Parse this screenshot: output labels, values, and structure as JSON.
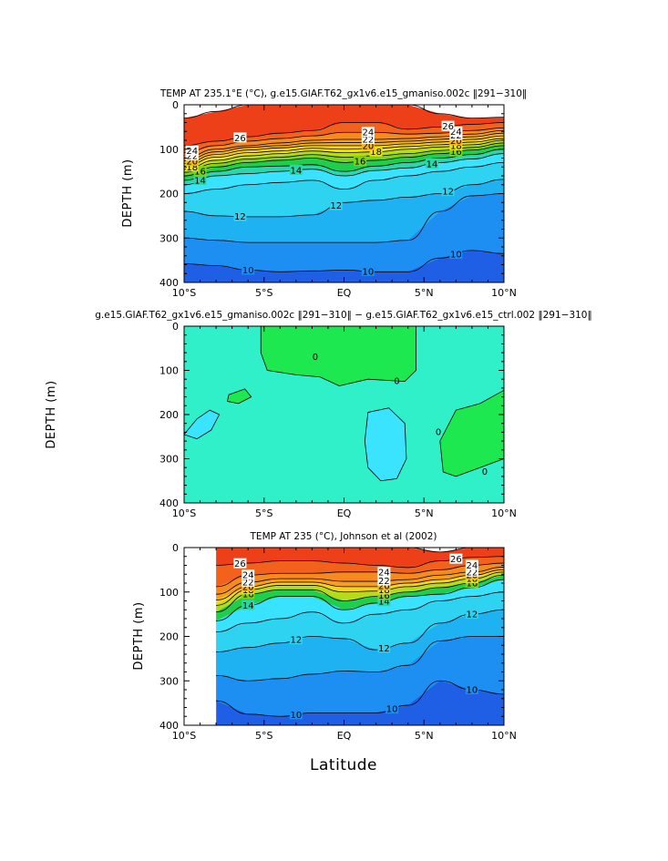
{
  "figure": {
    "xlabel": "Latitude"
  },
  "colors": {
    "t10": "#1f5fe6",
    "t11": "#1e8ff2",
    "t12": "#1fb2f3",
    "t13": "#2fd3f2",
    "t14": "#39e2ff",
    "t15": "#2cd6a8",
    "t16": "#1fcf4b",
    "t17": "#7ad41c",
    "t18": "#b6db1b",
    "t19": "#e8e01a",
    "t20": "#f6d21c",
    "t21": "#f7b51c",
    "t22": "#f79e1f",
    "t24": "#f78a1f",
    "t26": "#f2621c",
    "t28": "#ee4018",
    "diff_bg": "#2ff0c8",
    "diff_pos": "#1ee84f",
    "diff_neg": "#3ae4ff"
  },
  "chart_data": [
    {
      "type": "heatmap",
      "title": "TEMP AT 235.1°E (°C), g.e15.GIAF.T62_gx1v6.e15_gmaniso.002c ‖291−310‖",
      "ylabel": "DEPTH (m)",
      "xlabel": "",
      "xlim": [
        -10,
        10
      ],
      "ylim": [
        0,
        400
      ],
      "xticks": [
        -10,
        -5,
        0,
        5,
        10
      ],
      "xticklabels": [
        "10°S",
        "5°S",
        "EQ",
        "5°N",
        "10°N"
      ],
      "yticks": [
        0,
        100,
        200,
        300,
        400
      ],
      "yticklabels": [
        "0",
        "100",
        "200",
        "300",
        "400"
      ],
      "x": [
        -10,
        -8,
        -6,
        -4,
        -2,
        0,
        2,
        4,
        6,
        8,
        10
      ],
      "isotherm_depths": [
        {
          "level": 10,
          "depth": [
            358,
            362,
            372,
            376,
            374,
            372,
            376,
            376,
            345,
            328,
            335
          ],
          "label": "10",
          "labels_at": [
            -6,
            1.5,
            7
          ]
        },
        {
          "level": 11,
          "depth": [
            300,
            305,
            310,
            310,
            310,
            310,
            310,
            305,
            240,
            205,
            200
          ]
        },
        {
          "level": 12,
          "depth": [
            240,
            250,
            252,
            252,
            248,
            220,
            215,
            208,
            200,
            180,
            168
          ],
          "label": "12",
          "labels_at": [
            -6.5,
            -0.5,
            6.5
          ]
        },
        {
          "level": 13,
          "depth": [
            200,
            190,
            180,
            175,
            170,
            190,
            170,
            160,
            150,
            140,
            130
          ]
        },
        {
          "level": 14,
          "depth": [
            180,
            160,
            155,
            150,
            145,
            160,
            148,
            142,
            130,
            122,
            110
          ],
          "label": "14",
          "labels_at": [
            -9,
            -3,
            5.5
          ]
        },
        {
          "level": 15,
          "depth": [
            170,
            150,
            140,
            138,
            135,
            150,
            138,
            130,
            120,
            112,
            100
          ]
        },
        {
          "level": 16,
          "depth": [
            160,
            140,
            130,
            125,
            120,
            130,
            125,
            118,
            110,
            102,
            92
          ],
          "label": "16",
          "labels_at": [
            -9,
            1,
            7
          ]
        },
        {
          "level": 17,
          "depth": [
            152,
            132,
            122,
            118,
            112,
            118,
            115,
            110,
            103,
            96,
            86
          ]
        },
        {
          "level": 18,
          "depth": [
            145,
            125,
            115,
            110,
            104,
            108,
            106,
            100,
            95,
            90,
            80
          ],
          "label": "18",
          "labels_at": [
            -9.5,
            2,
            7
          ]
        },
        {
          "level": 19,
          "depth": [
            138,
            118,
            108,
            104,
            98,
            100,
            98,
            94,
            90,
            84,
            76
          ]
        },
        {
          "level": 20,
          "depth": [
            132,
            112,
            102,
            97,
            92,
            92,
            92,
            88,
            84,
            78,
            70
          ],
          "label": "20",
          "labels_at": [
            -9.5,
            1.5,
            7
          ]
        },
        {
          "level": 21,
          "depth": [
            126,
            106,
            96,
            92,
            86,
            85,
            85,
            82,
            78,
            72,
            64
          ]
        },
        {
          "level": 22,
          "depth": [
            120,
            100,
            92,
            86,
            80,
            78,
            78,
            76,
            72,
            66,
            58
          ],
          "label": "22",
          "labels_at": [
            -9.5,
            1.5,
            7
          ]
        },
        {
          "level": 24,
          "depth": [
            108,
            92,
            82,
            76,
            70,
            62,
            62,
            66,
            64,
            58,
            52
          ],
          "label": "24",
          "labels_at": [
            -9.5,
            1.5,
            7
          ]
        },
        {
          "level": 26,
          "depth": [
            92,
            82,
            72,
            64,
            58,
            40,
            40,
            55,
            50,
            44,
            40
          ],
          "label": "26",
          "labels_at": [
            -6.5,
            6.5
          ]
        },
        {
          "level": 28,
          "depth": [
            30,
            15,
            0,
            0,
            0,
            0,
            0,
            0,
            20,
            30,
            28
          ]
        }
      ]
    },
    {
      "type": "heatmap",
      "title": "g.e15.GIAF.T62_gx1v6.e15_gmaniso.002c ‖291−310‖ − g.e15.GIAF.T62_gx1v6.e15_ctrl.002 ‖291−310‖",
      "ylabel": "DEPTH (m)",
      "xlabel": "",
      "xlim": [
        -10,
        10
      ],
      "ylim": [
        0,
        400
      ],
      "xticks": [
        -10,
        -5,
        0,
        5,
        10
      ],
      "xticklabels": [
        "10°S",
        "5°S",
        "EQ",
        "5°N",
        "10°N"
      ],
      "yticks": [
        0,
        100,
        200,
        300,
        400
      ],
      "yticklabels": [
        "0",
        "100",
        "200",
        "300",
        "400"
      ],
      "contour_level": 0,
      "contour_label": "0",
      "regions": [
        {
          "sign": "positive",
          "points": [
            [
              -5.2,
              0
            ],
            [
              4.5,
              0
            ],
            [
              4.5,
              100
            ],
            [
              3.8,
              125
            ],
            [
              1.5,
              120
            ],
            [
              -0.3,
              135
            ],
            [
              -1.5,
              115
            ],
            [
              -3,
              110
            ],
            [
              -4.8,
              100
            ],
            [
              -5.2,
              60
            ]
          ]
        },
        {
          "sign": "positive",
          "points": [
            [
              -7.2,
              155
            ],
            [
              -6.2,
              142
            ],
            [
              -5.8,
              160
            ],
            [
              -6.6,
              175
            ],
            [
              -7.3,
              170
            ]
          ]
        },
        {
          "sign": "positive",
          "points": [
            [
              10,
              145
            ],
            [
              8.5,
              175
            ],
            [
              7,
              190
            ],
            [
              6,
              260
            ],
            [
              6.2,
              330
            ],
            [
              7,
              340
            ],
            [
              8.5,
              320
            ],
            [
              10,
              300
            ]
          ]
        },
        {
          "sign": "negative",
          "points": [
            [
              -10,
              245
            ],
            [
              -9.2,
              210
            ],
            [
              -8.4,
              190
            ],
            [
              -7.8,
              200
            ],
            [
              -8.3,
              235
            ],
            [
              -9.2,
              255
            ]
          ]
        },
        {
          "sign": "negative",
          "points": [
            [
              1.5,
              195
            ],
            [
              2.8,
              185
            ],
            [
              3.8,
              220
            ],
            [
              3.9,
              300
            ],
            [
              3.3,
              345
            ],
            [
              2.3,
              350
            ],
            [
              1.5,
              320
            ],
            [
              1.3,
              260
            ]
          ]
        }
      ],
      "labels": [
        {
          "x": -1.8,
          "y": 70,
          "text": "0"
        },
        {
          "x": 3.3,
          "y": 125,
          "text": "0"
        },
        {
          "x": 5.9,
          "y": 240,
          "text": "0"
        },
        {
          "x": 8.8,
          "y": 330,
          "text": "0"
        }
      ]
    },
    {
      "type": "heatmap",
      "title": "TEMP AT 235 (°C), Johnson et al (2002)",
      "ylabel": "DEPTH (m)",
      "xlabel": "Latitude",
      "xlim": [
        -10,
        10
      ],
      "ylim": [
        0,
        400
      ],
      "xticks": [
        -10,
        -5,
        0,
        5,
        10
      ],
      "xticklabels": [
        "10°S",
        "5°S",
        "EQ",
        "5°N",
        "10°N"
      ],
      "yticks": [
        0,
        100,
        200,
        300,
        400
      ],
      "yticklabels": [
        "0",
        "100",
        "200",
        "300",
        "400"
      ],
      "data_xmin": -8,
      "x": [
        -8,
        -6,
        -4,
        -2,
        0,
        2,
        4,
        6,
        8,
        10
      ],
      "isotherm_depths": [
        {
          "level": 10,
          "depth": [
            345,
            375,
            380,
            372,
            372,
            372,
            355,
            300,
            320,
            330
          ],
          "label": "10",
          "labels_at": [
            -3,
            3,
            8
          ]
        },
        {
          "level": 11,
          "depth": [
            288,
            300,
            295,
            285,
            278,
            280,
            265,
            210,
            200,
            200
          ]
        },
        {
          "level": 12,
          "depth": [
            235,
            225,
            215,
            200,
            205,
            230,
            215,
            170,
            150,
            140
          ],
          "label": "12",
          "labels_at": [
            -3,
            2.5,
            8
          ]
        },
        {
          "level": 13,
          "depth": [
            190,
            170,
            160,
            145,
            170,
            150,
            140,
            120,
            110,
            100
          ]
        },
        {
          "level": 14,
          "depth": [
            165,
            130,
            110,
            110,
            140,
            125,
            110,
            105,
            90,
            72
          ],
          "label": "14",
          "labels_at": [
            -6,
            2.5
          ]
        },
        {
          "level": 16,
          "depth": [
            145,
            105,
            95,
            95,
            120,
            110,
            100,
            90,
            80,
            62
          ],
          "label": "16",
          "labels_at": [
            -6,
            2.5,
            8
          ]
        },
        {
          "level": 18,
          "depth": [
            130,
            95,
            85,
            85,
            100,
            98,
            88,
            80,
            70,
            55
          ],
          "label": "18",
          "labels_at": [
            -6,
            2.5,
            8
          ]
        },
        {
          "level": 20,
          "depth": [
            118,
            88,
            78,
            78,
            88,
            88,
            80,
            72,
            62,
            50
          ],
          "label": "20",
          "labels_at": [
            -6,
            2.5,
            8
          ]
        },
        {
          "level": 22,
          "depth": [
            105,
            78,
            70,
            70,
            76,
            76,
            72,
            62,
            55,
            44
          ],
          "label": "22",
          "labels_at": [
            -6,
            2.5,
            8
          ]
        },
        {
          "level": 24,
          "depth": [
            88,
            62,
            58,
            58,
            55,
            55,
            58,
            50,
            40,
            35
          ],
          "label": "24",
          "labels_at": [
            -6,
            2.5,
            8
          ]
        },
        {
          "level": 26,
          "depth": [
            40,
            35,
            30,
            30,
            35,
            40,
            45,
            30,
            22,
            20
          ],
          "label": "26",
          "labels_at": [
            -6.5,
            7
          ]
        },
        {
          "level": 28,
          "depth": [
            0,
            0,
            0,
            0,
            0,
            0,
            0,
            10,
            0,
            0
          ]
        }
      ]
    }
  ]
}
